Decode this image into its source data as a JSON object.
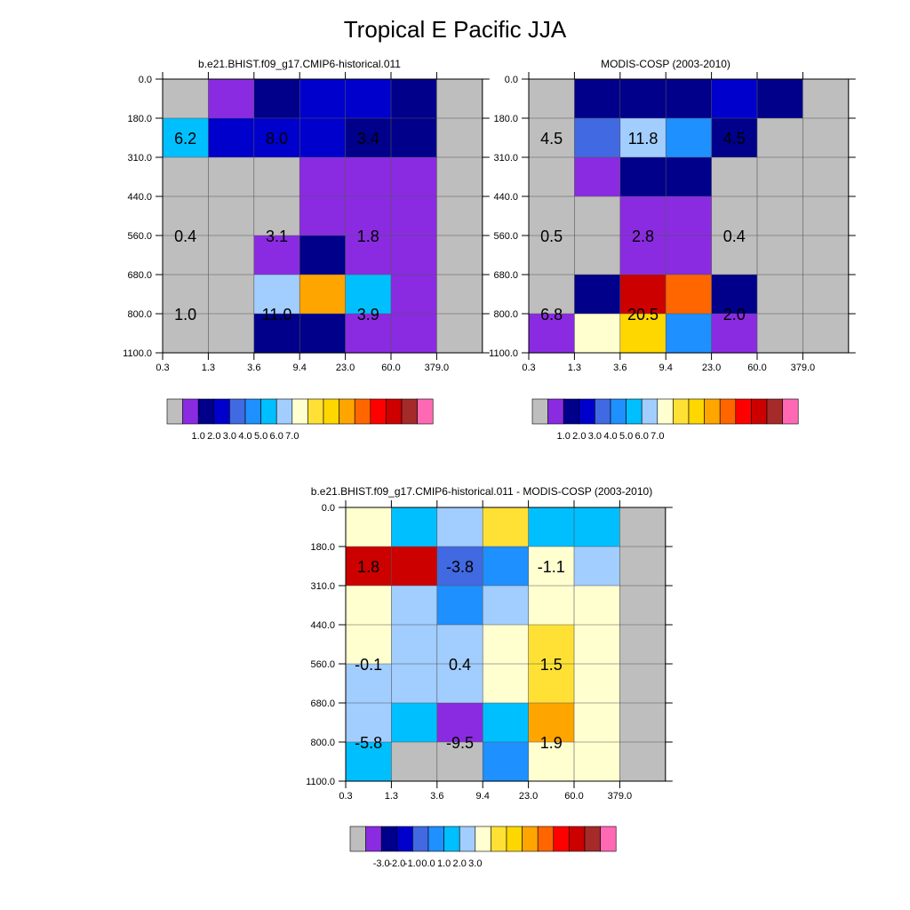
{
  "figure": {
    "title": "Tropical E Pacific JJA"
  },
  "chart_data": [
    {
      "type": "heatmap",
      "title": "b.e21.BHIST.f09_g17.CMIP6-historical.011",
      "x_ticks": [
        "0.3",
        "1.3",
        "3.6",
        "9.4",
        "23.0",
        "60.0",
        "379.0"
      ],
      "y_ticks": [
        "0.0",
        "180.0",
        "310.0",
        "440.0",
        "560.0",
        "680.0",
        "800.0",
        "1100.0"
      ],
      "color_index": [
        [
          0,
          1,
          2,
          3,
          3,
          2,
          0
        ],
        [
          6,
          3,
          3,
          3,
          2,
          2,
          0
        ],
        [
          0,
          0,
          0,
          1,
          1,
          1,
          0
        ],
        [
          0,
          0,
          0,
          1,
          1,
          1,
          0
        ],
        [
          0,
          0,
          1,
          2,
          1,
          1,
          0
        ],
        [
          0,
          0,
          7,
          11,
          6,
          1,
          0
        ],
        [
          0,
          0,
          2,
          2,
          1,
          1,
          0
        ]
      ],
      "block_labels": [
        {
          "col": 0.5,
          "row": 1.5,
          "text": "6.2"
        },
        {
          "col": 2.5,
          "row": 1.5,
          "text": "8.0"
        },
        {
          "col": 4.5,
          "row": 1.5,
          "text": "3.4"
        },
        {
          "col": 0.5,
          "row": 4.0,
          "text": "0.4"
        },
        {
          "col": 2.5,
          "row": 4.0,
          "text": "3.1"
        },
        {
          "col": 4.5,
          "row": 4.0,
          "text": "1.8"
        },
        {
          "col": 0.5,
          "row": 6.0,
          "text": "1.0"
        },
        {
          "col": 2.5,
          "row": 6.0,
          "text": "11.0"
        },
        {
          "col": 4.5,
          "row": 6.0,
          "text": "3.9"
        }
      ],
      "colorbar": {
        "colors": [
          "#bebebe",
          "#8a2be2",
          "#00008b",
          "#0000cd",
          "#4169e1",
          "#1e90ff",
          "#00bfff",
          "#a2cdff",
          "#ffffd0",
          "#ffe135",
          "#ffd700",
          "#ffa500",
          "#ff6600",
          "#ff0000",
          "#cd0000",
          "#a52a2a",
          "#ff69b4"
        ],
        "labels": [
          "1.0",
          "2.0",
          "3.0",
          "4.0",
          "5.0",
          "6.0",
          "7.0"
        ]
      }
    },
    {
      "type": "heatmap",
      "title": "MODIS-COSP (2003-2010)",
      "x_ticks": [
        "0.3",
        "1.3",
        "3.6",
        "9.4",
        "23.0",
        "60.0",
        "379.0"
      ],
      "y_ticks": [
        "0.0",
        "180.0",
        "310.0",
        "440.0",
        "560.0",
        "680.0",
        "800.0",
        "1100.0"
      ],
      "color_index": [
        [
          0,
          2,
          2,
          2,
          3,
          2,
          0
        ],
        [
          0,
          4,
          7,
          5,
          2,
          0,
          0
        ],
        [
          0,
          1,
          2,
          2,
          0,
          0,
          0
        ],
        [
          0,
          0,
          1,
          1,
          0,
          0,
          0
        ],
        [
          0,
          0,
          1,
          1,
          0,
          0,
          0
        ],
        [
          0,
          2,
          14,
          12,
          2,
          0,
          0
        ],
        [
          1,
          8,
          10,
          5,
          1,
          0,
          0
        ]
      ],
      "block_labels": [
        {
          "col": 0.5,
          "row": 1.5,
          "text": "4.5"
        },
        {
          "col": 2.5,
          "row": 1.5,
          "text": "11.8"
        },
        {
          "col": 4.5,
          "row": 1.5,
          "text": "4.5"
        },
        {
          "col": 0.5,
          "row": 4.0,
          "text": "0.5"
        },
        {
          "col": 2.5,
          "row": 4.0,
          "text": "2.8"
        },
        {
          "col": 4.5,
          "row": 4.0,
          "text": "0.4"
        },
        {
          "col": 0.5,
          "row": 6.0,
          "text": "6.8"
        },
        {
          "col": 2.5,
          "row": 6.0,
          "text": "20.5"
        },
        {
          "col": 4.5,
          "row": 6.0,
          "text": "2.0"
        }
      ],
      "colorbar": {
        "colors": [
          "#bebebe",
          "#8a2be2",
          "#00008b",
          "#0000cd",
          "#4169e1",
          "#1e90ff",
          "#00bfff",
          "#a2cdff",
          "#ffffd0",
          "#ffe135",
          "#ffd700",
          "#ffa500",
          "#ff6600",
          "#ff0000",
          "#cd0000",
          "#a52a2a",
          "#ff69b4"
        ],
        "labels": [
          "1.0",
          "2.0",
          "3.0",
          "4.0",
          "5.0",
          "6.0",
          "7.0"
        ]
      }
    },
    {
      "type": "heatmap",
      "title": "b.e21.BHIST.f09_g17.CMIP6-historical.011 - MODIS-COSP (2003-2010)",
      "x_ticks": [
        "0.3",
        "1.3",
        "3.6",
        "9.4",
        "23.0",
        "60.0",
        "379.0"
      ],
      "y_ticks": [
        "0.0",
        "180.0",
        "310.0",
        "440.0",
        "560.0",
        "680.0",
        "800.0",
        "1100.0"
      ],
      "color_index": [
        [
          8,
          6,
          7,
          9,
          6,
          6,
          0
        ],
        [
          14,
          14,
          4,
          5,
          8,
          7,
          0
        ],
        [
          8,
          7,
          5,
          7,
          8,
          8,
          0
        ],
        [
          8,
          7,
          7,
          8,
          9,
          8,
          0
        ],
        [
          7,
          7,
          7,
          8,
          9,
          8,
          0
        ],
        [
          7,
          6,
          1,
          6,
          11,
          8,
          0
        ],
        [
          6,
          0,
          0,
          5,
          8,
          8,
          0
        ]
      ],
      "block_labels": [
        {
          "col": 0.5,
          "row": 1.5,
          "text": "1.8"
        },
        {
          "col": 2.5,
          "row": 1.5,
          "text": "-3.8"
        },
        {
          "col": 4.5,
          "row": 1.5,
          "text": "-1.1"
        },
        {
          "col": 0.5,
          "row": 4.0,
          "text": "-0.1"
        },
        {
          "col": 2.5,
          "row": 4.0,
          "text": "0.4"
        },
        {
          "col": 4.5,
          "row": 4.0,
          "text": "1.5"
        },
        {
          "col": 0.5,
          "row": 6.0,
          "text": "-5.8"
        },
        {
          "col": 2.5,
          "row": 6.0,
          "text": "-9.5"
        },
        {
          "col": 4.5,
          "row": 6.0,
          "text": "1.9"
        }
      ],
      "colorbar": {
        "colors": [
          "#bebebe",
          "#8a2be2",
          "#00008b",
          "#0000cd",
          "#4169e1",
          "#1e90ff",
          "#00bfff",
          "#a2cdff",
          "#ffffd0",
          "#ffe135",
          "#ffd700",
          "#ffa500",
          "#ff6600",
          "#ff0000",
          "#cd0000",
          "#a52a2a",
          "#ff69b4"
        ],
        "labels": [
          "-3.0",
          "-2.0",
          "-1.0",
          "0.0",
          "1.0",
          "2.0",
          "3.0"
        ]
      }
    }
  ]
}
